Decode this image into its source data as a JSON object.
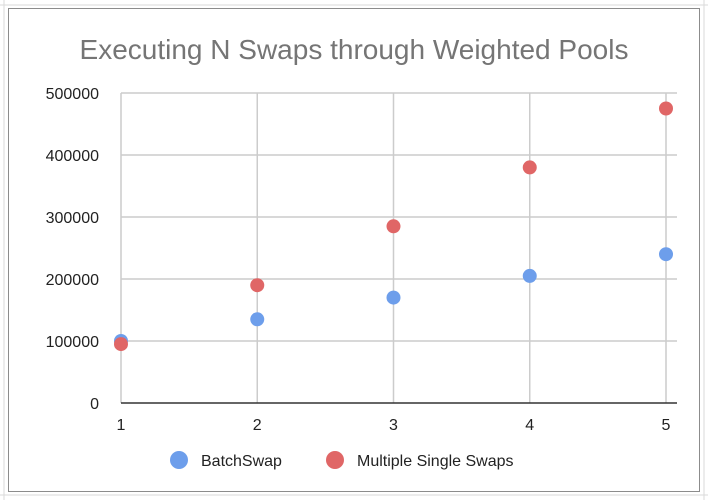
{
  "chart_data": {
    "type": "scatter",
    "title": "Executing N Swaps through Weighted Pools",
    "xlabel": "",
    "ylabel": "",
    "x_ticks": [
      "1",
      "2",
      "3",
      "4",
      "5"
    ],
    "y_ticks": [
      "0",
      "100000",
      "200000",
      "300000",
      "400000",
      "500000"
    ],
    "xlim": [
      1,
      5
    ],
    "ylim": [
      0,
      500000
    ],
    "grid": true,
    "legend_position": "bottom",
    "series": [
      {
        "name": "BatchSwap",
        "color": "#6d9eeb",
        "points": [
          {
            "x": 1,
            "y": 100000
          },
          {
            "x": 2,
            "y": 135000
          },
          {
            "x": 3,
            "y": 170000
          },
          {
            "x": 4,
            "y": 205000
          },
          {
            "x": 5,
            "y": 240000
          }
        ]
      },
      {
        "name": "Multiple Single Swaps",
        "color": "#e06666",
        "points": [
          {
            "x": 1,
            "y": 95000
          },
          {
            "x": 2,
            "y": 190000
          },
          {
            "x": 3,
            "y": 285000
          },
          {
            "x": 4,
            "y": 380000
          },
          {
            "x": 5,
            "y": 475000
          }
        ]
      }
    ]
  }
}
